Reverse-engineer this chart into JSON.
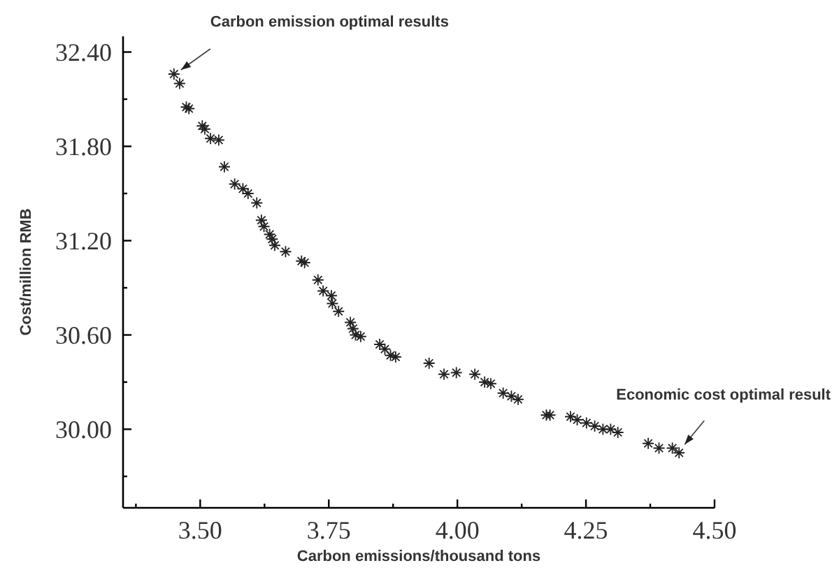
{
  "chart_data": {
    "type": "scatter",
    "xlabel": "Carbon emissions/thousand tons",
    "ylabel": "Cost/million RMB",
    "xlim": [
      3.35,
      4.5
    ],
    "ylim": [
      29.5,
      32.5
    ],
    "xticks": [
      {
        "value": 3.375,
        "label": null
      },
      {
        "value": 3.5,
        "label": "3.50"
      },
      {
        "value": 3.625,
        "label": null
      },
      {
        "value": 3.75,
        "label": "3.75"
      },
      {
        "value": 3.875,
        "label": null
      },
      {
        "value": 4,
        "label": "4.00"
      },
      {
        "value": 4.125,
        "label": null
      },
      {
        "value": 4.25,
        "label": "4.25"
      },
      {
        "value": 4.375,
        "label": null
      },
      {
        "value": 4.5,
        "label": "4.50"
      }
    ],
    "yticks": [
      {
        "value": 29.7,
        "label": null
      },
      {
        "value": 30,
        "label": "30.00"
      },
      {
        "value": 30.3,
        "label": null
      },
      {
        "value": 30.6,
        "label": "30.60"
      },
      {
        "value": 30.9,
        "label": null
      },
      {
        "value": 31.2,
        "label": "31.20"
      },
      {
        "value": 31.5,
        "label": null
      },
      {
        "value": 31.8,
        "label": "31.80"
      },
      {
        "value": 32.1,
        "label": null
      },
      {
        "value": 32.4,
        "label": "32.40"
      }
    ],
    "grid": false,
    "marker": "cross",
    "series": [
      {
        "color": "#222222",
        "x": [
          3.449,
          3.46,
          3.473,
          3.478,
          3.504,
          3.509,
          3.52,
          3.536,
          3.547,
          3.567,
          3.583,
          3.593,
          3.61,
          3.619,
          3.624,
          3.635,
          3.64,
          3.645,
          3.666,
          3.697,
          3.703,
          3.729,
          3.739,
          3.755,
          3.757,
          3.769,
          3.792,
          3.797,
          3.802,
          3.812,
          3.849,
          3.859,
          3.87,
          3.88,
          3.945,
          3.974,
          3.998,
          4.034,
          4.053,
          4.065,
          4.089,
          4.105,
          4.118,
          4.173,
          4.18,
          4.22,
          4.233,
          4.251,
          4.267,
          4.283,
          4.298,
          4.312,
          4.371,
          4.392,
          4.418,
          4.431
        ],
        "values": [
          32.26,
          32.2,
          32.05,
          32.04,
          31.93,
          31.91,
          31.85,
          31.84,
          31.67,
          31.56,
          31.53,
          31.5,
          31.44,
          31.33,
          31.29,
          31.24,
          31.21,
          31.17,
          31.13,
          31.07,
          31.06,
          30.95,
          30.88,
          30.85,
          30.8,
          30.75,
          30.68,
          30.64,
          30.6,
          30.59,
          30.54,
          30.51,
          30.47,
          30.46,
          30.42,
          30.35,
          30.36,
          30.35,
          30.3,
          30.29,
          30.23,
          30.21,
          30.19,
          30.09,
          30.09,
          30.08,
          30.06,
          30.04,
          30.02,
          30,
          30,
          29.98,
          29.91,
          29.88,
          29.88,
          29.85
        ]
      }
    ],
    "annotations": [
      {
        "text": "Carbon emission optimal results",
        "x": 3.449,
        "y": 32.26
      },
      {
        "text": "Economic cost optimal result",
        "x": 4.431,
        "y": 29.85
      }
    ]
  }
}
